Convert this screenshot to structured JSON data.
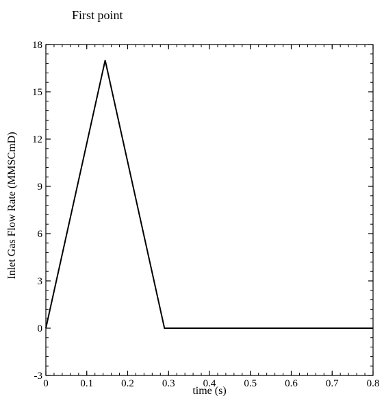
{
  "chart_data": {
    "type": "line",
    "title": "First point",
    "xlabel": "time (s)",
    "ylabel": "Inlet Gas Flow Rate (MMSCmD)",
    "xlim": [
      0,
      0.8
    ],
    "ylim": [
      -3,
      18
    ],
    "x_ticks": [
      0,
      0.1,
      0.2,
      0.3,
      0.4,
      0.5,
      0.6,
      0.7,
      0.8
    ],
    "x_tick_labels": [
      "0",
      "0.1",
      "0.2",
      "0.3",
      "0.4",
      "0.5",
      "0.6",
      "0.7",
      "0.8"
    ],
    "x_minor_step": 0.02,
    "y_ticks": [
      -3,
      0,
      3,
      6,
      9,
      12,
      15,
      18
    ],
    "y_tick_labels": [
      "-3",
      "0",
      "3",
      "6",
      "9",
      "12",
      "15",
      "18"
    ],
    "y_minor_step": 0.6,
    "grid": false,
    "series": [
      {
        "x": [
          0,
          0.145,
          0.29,
          0.8
        ],
        "values": [
          0,
          17,
          0,
          0
        ],
        "color": "#000000"
      }
    ]
  }
}
